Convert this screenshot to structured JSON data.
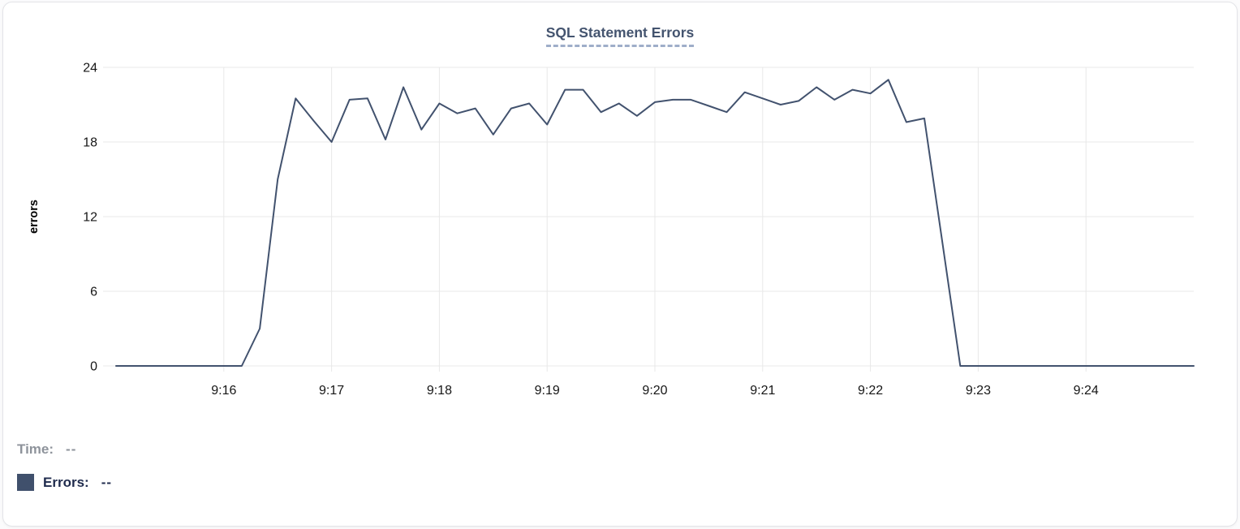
{
  "tooltip": {
    "time_label": "Time:",
    "time_value": "--",
    "errors_label": "Errors:",
    "errors_value": "--"
  },
  "colors": {
    "card_border": "#e3e4e8",
    "grid": "#e8e8e8",
    "axis_text": "#161616",
    "title": "#44546F",
    "title_underline": "#9FAEC9",
    "time_text": "#8E939B",
    "errors_text": "#1F2B4D",
    "swatch": "#40506C",
    "line": "#42526E"
  },
  "chart_data": {
    "type": "line",
    "title": "SQL Statement Errors",
    "xlabel": "",
    "ylabel": "errors",
    "ylim": [
      0,
      24
    ],
    "yticks": [
      0,
      6,
      12,
      18,
      24
    ],
    "xticks": [
      "9:16",
      "9:17",
      "9:18",
      "9:19",
      "9:20",
      "9:21",
      "9:22",
      "9:23",
      "9:24"
    ],
    "x_range": [
      "9:15:00",
      "9:25:00"
    ],
    "grid": true,
    "legend_position": "bottom-left",
    "series": [
      {
        "name": "Errors",
        "color": "#42526E",
        "x": [
          "9:15:00",
          "9:15:10",
          "9:15:20",
          "9:15:30",
          "9:15:40",
          "9:15:50",
          "9:16:00",
          "9:16:10",
          "9:16:20",
          "9:16:30",
          "9:16:40",
          "9:16:50",
          "9:17:00",
          "9:17:10",
          "9:17:20",
          "9:17:30",
          "9:17:40",
          "9:17:50",
          "9:18:00",
          "9:18:10",
          "9:18:20",
          "9:18:30",
          "9:18:40",
          "9:18:50",
          "9:19:00",
          "9:19:10",
          "9:19:20",
          "9:19:30",
          "9:19:40",
          "9:19:50",
          "9:20:00",
          "9:20:10",
          "9:20:20",
          "9:20:30",
          "9:20:40",
          "9:20:50",
          "9:21:00",
          "9:21:10",
          "9:21:20",
          "9:21:30",
          "9:21:40",
          "9:21:50",
          "9:22:00",
          "9:22:10",
          "9:22:20",
          "9:22:30",
          "9:22:40",
          "9:22:50",
          "9:23:00",
          "9:23:10",
          "9:23:20",
          "9:23:30",
          "9:23:40",
          "9:23:50",
          "9:24:00",
          "9:24:10",
          "9:24:20",
          "9:24:30",
          "9:24:40",
          "9:24:50",
          "9:25:00"
        ],
        "values": [
          0,
          0,
          0,
          0,
          0,
          0,
          0,
          0,
          3,
          15,
          21.5,
          19.7,
          18,
          21.4,
          21.5,
          18.2,
          22.4,
          19,
          21.1,
          20.3,
          20.7,
          18.6,
          20.7,
          21.1,
          19.4,
          22.2,
          22.2,
          20.4,
          21.1,
          20.1,
          21.2,
          21.4,
          21.4,
          20.9,
          20.4,
          22,
          21.5,
          21,
          21.3,
          22.4,
          21.4,
          22.2,
          21.9,
          23,
          19.6,
          19.9,
          10,
          0,
          0,
          0,
          0,
          0,
          0,
          0,
          0,
          0,
          0,
          0,
          0,
          0,
          0
        ]
      }
    ]
  }
}
